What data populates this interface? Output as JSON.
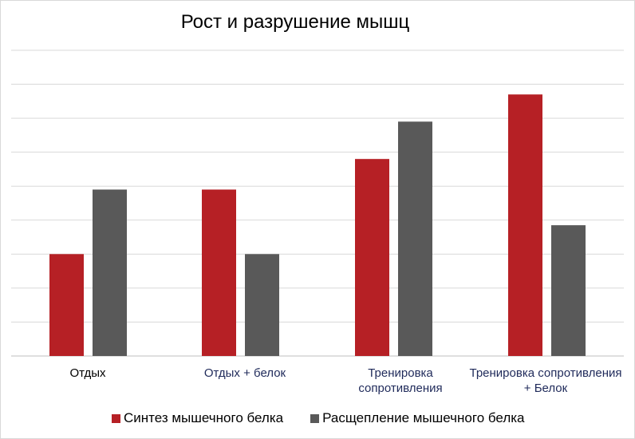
{
  "chart_data": {
    "type": "bar",
    "title": "Рост и разрушение мышц",
    "categories": [
      "Отдых",
      "Отдых + белок",
      "Тренировка сопротивления",
      "Тренировка сопротивления + Белок"
    ],
    "series": [
      {
        "name": "Синтез мышечного белка",
        "color": "#b62025",
        "values": [
          3.0,
          4.9,
          5.8,
          7.7
        ]
      },
      {
        "name": "Расщепление мышечного белка",
        "color": "#595959",
        "values": [
          4.9,
          3.0,
          6.9,
          3.85
        ]
      }
    ],
    "ylim": [
      0,
      9
    ],
    "grid": true,
    "legend_position": "bottom"
  }
}
